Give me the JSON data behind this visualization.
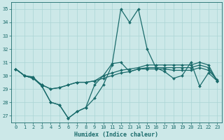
{
  "x": [
    0,
    1,
    2,
    3,
    4,
    5,
    6,
    7,
    8,
    9,
    10,
    11,
    12,
    13,
    14,
    15,
    16,
    17,
    18,
    19,
    20,
    21,
    22,
    23
  ],
  "line1": [
    30.5,
    30.0,
    29.9,
    29.2,
    28.0,
    27.8,
    26.8,
    27.3,
    27.6,
    28.3,
    29.3,
    30.8,
    35.0,
    34.0,
    35.0,
    32.0,
    30.6,
    30.3,
    29.8,
    30.0,
    31.0,
    29.2,
    30.2,
    29.6
  ],
  "line2": [
    30.5,
    30.0,
    29.8,
    29.3,
    29.0,
    29.1,
    29.3,
    29.5,
    29.5,
    29.6,
    29.8,
    30.0,
    30.2,
    30.3,
    30.5,
    30.6,
    30.6,
    30.6,
    30.6,
    30.6,
    30.6,
    30.8,
    30.6,
    29.6
  ],
  "line3": [
    30.5,
    30.0,
    29.8,
    29.3,
    29.0,
    29.1,
    29.3,
    29.5,
    29.5,
    29.6,
    30.0,
    30.2,
    30.4,
    30.5,
    30.6,
    30.8,
    30.8,
    30.8,
    30.8,
    30.8,
    30.8,
    31.0,
    30.8,
    29.6
  ],
  "line4": [
    30.5,
    30.0,
    29.8,
    29.2,
    28.0,
    27.8,
    26.8,
    27.3,
    27.6,
    29.3,
    30.0,
    30.9,
    31.0,
    30.3,
    30.5,
    30.5,
    30.5,
    30.5,
    30.4,
    30.4,
    30.4,
    30.6,
    30.4,
    29.7
  ],
  "bg_color": "#cce8e8",
  "grid_color": "#aad4d4",
  "line_color": "#1a6b6b",
  "ylim_min": 26.5,
  "ylim_max": 35.5,
  "yticks": [
    27,
    28,
    29,
    30,
    31,
    32,
    33,
    34,
    35
  ],
  "xlim_min": -0.5,
  "xlim_max": 23.5,
  "xlabel": "Humidex (Indice chaleur)",
  "marker": "D",
  "marker_size": 2.0,
  "linewidth": 0.9,
  "tick_fontsize": 5.0,
  "xlabel_fontsize": 6.0
}
